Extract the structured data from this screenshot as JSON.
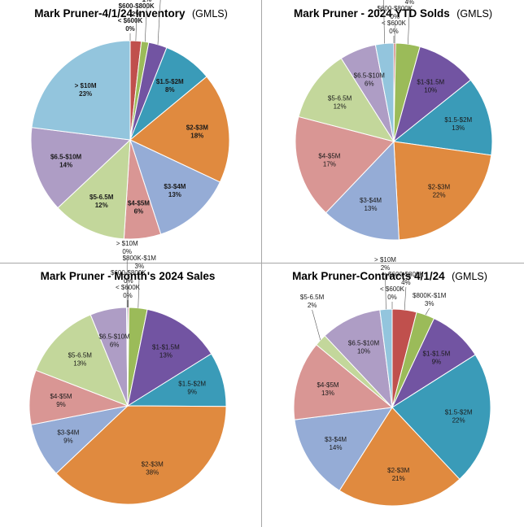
{
  "chart_data": [
    {
      "type": "pie",
      "title": "Mark Pruner-4/1/24 Inventory",
      "subtitle": "(GMLS)",
      "bold_labels": true,
      "slices": [
        {
          "label": "< $600K",
          "pct": "0%",
          "value": 0.0,
          "color": "#4a7fb5"
        },
        {
          "label": "$600-$800K",
          "pct": "2%",
          "value": 1.8,
          "color": "#c0504d"
        },
        {
          "label": "$800K-$1M",
          "pct": "1%",
          "value": 1.2,
          "color": "#9bbb59"
        },
        {
          "label": "$1-$1.5M",
          "pct": "3%",
          "value": 3.0,
          "color": "#7254a2"
        },
        {
          "label": "$1.5-$2M",
          "pct": "8%",
          "value": 8.0,
          "color": "#3a9bb8"
        },
        {
          "label": "$2-$3M",
          "pct": "18%",
          "value": 18.0,
          "color": "#e08a3f"
        },
        {
          "label": "$3-$4M",
          "pct": "13%",
          "value": 13.0,
          "color": "#95acd6"
        },
        {
          "label": "$4-$5M",
          "pct": "6%",
          "value": 6.0,
          "color": "#d99694"
        },
        {
          "label": "$5-6.5M",
          "pct": "12%",
          "value": 12.0,
          "color": "#c3d79b"
        },
        {
          "label": "$6.5-$10M",
          "pct": "14%",
          "value": 14.0,
          "color": "#ae9dc5"
        },
        {
          "label": "> $10M",
          "pct": "23%",
          "value": 23.0,
          "color": "#93c5dd"
        }
      ]
    },
    {
      "type": "pie",
      "title": "Mark Pruner - 2024 YTD Solds",
      "subtitle": "(GMLS)",
      "bold_labels": false,
      "slices": [
        {
          "label": "< $600K",
          "pct": "0%",
          "value": 0.0,
          "color": "#4a7fb5"
        },
        {
          "label": "$600-$800K",
          "pct": "0%",
          "value": 0.3,
          "color": "#c0504d"
        },
        {
          "label": "$800K-$1M",
          "pct": "4%",
          "value": 4.0,
          "color": "#9bbb59"
        },
        {
          "label": "$1-$1.5M",
          "pct": "10%",
          "value": 10.0,
          "color": "#7254a2"
        },
        {
          "label": "$1.5-$2M",
          "pct": "13%",
          "value": 13.0,
          "color": "#3a9bb8"
        },
        {
          "label": "$2-$3M",
          "pct": "22%",
          "value": 22.0,
          "color": "#e08a3f"
        },
        {
          "label": "$3-$4M",
          "pct": "13%",
          "value": 13.0,
          "color": "#95acd6"
        },
        {
          "label": "$4-$5M",
          "pct": "17%",
          "value": 17.0,
          "color": "#d99694"
        },
        {
          "label": "$5-6.5M",
          "pct": "12%",
          "value": 12.0,
          "color": "#c3d79b"
        },
        {
          "label": "$6.5-$10M",
          "pct": "6%",
          "value": 6.0,
          "color": "#ae9dc5"
        },
        {
          "label": "> $10M",
          "pct": "3%",
          "value": 3.0,
          "color": "#93c5dd"
        }
      ]
    },
    {
      "type": "pie",
      "title": "Mark Pruner - Month's 2024 Sales",
      "subtitle": "",
      "bold_labels": false,
      "slices": [
        {
          "label": "< $600K",
          "pct": "0%",
          "value": 0.0,
          "color": "#4a7fb5"
        },
        {
          "label": "$600-$800K",
          "pct": "0%",
          "value": 0.2,
          "color": "#c0504d"
        },
        {
          "label": "$800K-$1M",
          "pct": "3%",
          "value": 3.0,
          "color": "#9bbb59"
        },
        {
          "label": "$1-$1.5M",
          "pct": "13%",
          "value": 13.0,
          "color": "#7254a2"
        },
        {
          "label": "$1.5-$2M",
          "pct": "9%",
          "value": 9.0,
          "color": "#3a9bb8"
        },
        {
          "label": "$2-$3M",
          "pct": "38%",
          "value": 38.0,
          "color": "#e08a3f"
        },
        {
          "label": "$3-$4M",
          "pct": "9%",
          "value": 9.0,
          "color": "#95acd6"
        },
        {
          "label": "$4-$5M",
          "pct": "9%",
          "value": 9.0,
          "color": "#d99694"
        },
        {
          "label": "$5-6.5M",
          "pct": "13%",
          "value": 13.0,
          "color": "#c3d79b"
        },
        {
          "label": "$6.5-$10M",
          "pct": "6%",
          "value": 6.0,
          "color": "#ae9dc5"
        },
        {
          "label": "> $10M",
          "pct": "0%",
          "value": 0.2,
          "color": "#93c5dd"
        }
      ]
    },
    {
      "type": "pie",
      "title": "Mark Pruner-Contracts 4/1/24",
      "subtitle": "(GMLS)",
      "bold_labels": false,
      "slices": [
        {
          "label": "< $600K",
          "pct": "0%",
          "value": 0.0,
          "color": "#4a7fb5"
        },
        {
          "label": "$600-$800K",
          "pct": "4%",
          "value": 4.0,
          "color": "#c0504d"
        },
        {
          "label": "$800K-$1M",
          "pct": "3%",
          "value": 3.0,
          "color": "#9bbb59"
        },
        {
          "label": "$1-$1.5M",
          "pct": "9%",
          "value": 9.0,
          "color": "#7254a2"
        },
        {
          "label": "$1.5-$2M",
          "pct": "22%",
          "value": 22.0,
          "color": "#3a9bb8"
        },
        {
          "label": "$2-$3M",
          "pct": "21%",
          "value": 21.0,
          "color": "#e08a3f"
        },
        {
          "label": "$3-$4M",
          "pct": "14%",
          "value": 14.0,
          "color": "#95acd6"
        },
        {
          "label": "$4-$5M",
          "pct": "13%",
          "value": 13.0,
          "color": "#d99694"
        },
        {
          "label": "$5-6.5M",
          "pct": "2%",
          "value": 2.0,
          "color": "#c3d79b"
        },
        {
          "label": "$6.5-$10M",
          "pct": "10%",
          "value": 10.0,
          "color": "#ae9dc5"
        },
        {
          "label": "> $10M",
          "pct": "2%",
          "value": 2.0,
          "color": "#93c5dd"
        }
      ]
    }
  ]
}
